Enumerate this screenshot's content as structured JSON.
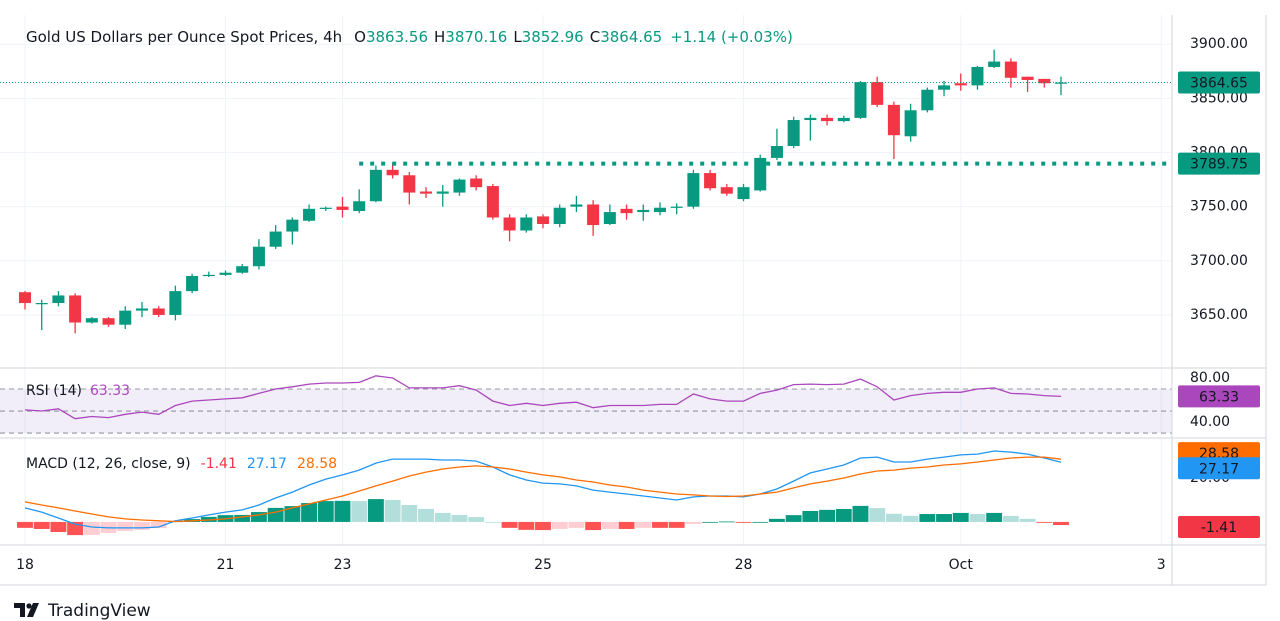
{
  "chart_data": [
    {
      "type": "candlestick",
      "title": "Gold US Dollars per Ounce Spot Prices, 4h",
      "ohlc_labels": [
        "O",
        "H",
        "L",
        "C"
      ],
      "change": "+1.14 (+0.03%)",
      "categories": [
        "18",
        null,
        null,
        null,
        null,
        null,
        null,
        null,
        null,
        null,
        null,
        null,
        "21",
        null,
        null,
        null,
        null,
        null,
        null,
        "23",
        null,
        null,
        null,
        null,
        null,
        null,
        null,
        null,
        null,
        null,
        null,
        "25",
        null,
        null,
        null,
        null,
        null,
        null,
        null,
        null,
        null,
        null,
        null,
        "28",
        null,
        null,
        null,
        null,
        null,
        null,
        null,
        null,
        null,
        null,
        null,
        null,
        "Oct",
        null,
        null,
        null,
        null,
        null,
        null,
        null,
        null,
        null,
        null,
        null,
        "3"
      ],
      "open": [
        3671,
        3660,
        3661,
        3668,
        3643,
        3647,
        3641,
        3654,
        3656,
        3650,
        3672,
        3686,
        3687,
        3689,
        3695,
        3713,
        3727,
        3737,
        3748,
        3750,
        3746,
        3755,
        3784,
        3779,
        3764,
        3762,
        3763,
        3776,
        3769,
        3740,
        3728,
        3741,
        3734,
        3750,
        3752,
        3734,
        3748,
        3745,
        3745,
        3749,
        3750,
        3781,
        3768,
        3757,
        3765,
        3795,
        3806,
        3830,
        3832,
        3829,
        3832,
        3865,
        3844,
        3815,
        3839,
        3858,
        3864,
        3862,
        3879,
        3884,
        3870,
        3868,
        3863.56,
        null,
        null,
        null,
        null,
        null,
        null
      ],
      "high": [
        3672,
        3664,
        3672,
        3670,
        3648,
        3648,
        3658,
        3662,
        3658,
        3677,
        3688,
        3690,
        3691,
        3697,
        3720,
        3733,
        3740,
        3752,
        3750,
        3759,
        3766,
        3788,
        3790,
        3782,
        3768,
        3770,
        3776,
        3779,
        3771,
        3743,
        3743,
        3743,
        3752,
        3760,
        3756,
        3752,
        3752,
        3752,
        3754,
        3753,
        3784,
        3784,
        3771,
        3771,
        3798,
        3822,
        3833,
        3835,
        3835,
        3834,
        3866,
        3870,
        3847,
        3845,
        3860,
        3866,
        3873,
        3880,
        3895,
        3887,
        3870,
        3868,
        3870.16,
        null,
        null,
        null,
        null,
        null,
        null
      ],
      "low": [
        3655,
        3636,
        3658,
        3633,
        3642,
        3639,
        3637,
        3648,
        3648,
        3645,
        3670,
        3685,
        3686,
        3688,
        3692,
        3711,
        3715,
        3736,
        3746,
        3740,
        3744,
        3754,
        3776,
        3752,
        3758,
        3750,
        3760,
        3765,
        3738,
        3718,
        3726,
        3730,
        3731,
        3745,
        3723,
        3733,
        3738,
        3737,
        3742,
        3743,
        3748,
        3765,
        3760,
        3755,
        3764,
        3793,
        3804,
        3811,
        3825,
        3828,
        3831,
        3842,
        3794,
        3810,
        3837,
        3852,
        3857,
        3858,
        3878,
        3860,
        3856,
        3860,
        3852.96,
        null,
        null,
        null,
        null,
        null,
        null
      ],
      "close": [
        3661,
        3661,
        3668,
        3643,
        3647,
        3641,
        3654,
        3656,
        3650,
        3672,
        3686,
        3687,
        3689,
        3695,
        3713,
        3727,
        3738,
        3748,
        3749,
        3747,
        3755,
        3784,
        3779,
        3763,
        3762,
        3764,
        3775,
        3768,
        3740,
        3728,
        3740,
        3734,
        3749,
        3752,
        3733,
        3745,
        3744,
        3747,
        3749,
        3750,
        3781,
        3767,
        3762,
        3768,
        3795,
        3806,
        3830,
        3832,
        3829,
        3832,
        3865,
        3844,
        3816,
        3839,
        3858,
        3862,
        3862,
        3879,
        3884,
        3869,
        3867,
        3864,
        3864.65,
        null,
        null,
        null,
        null,
        null,
        null
      ],
      "up_color": "#089981",
      "down_color": "#f23645",
      "level": 3789.75,
      "ylim": [
        3601,
        3927
      ],
      "yticks": [
        {
          "value": 3650,
          "label": "3650.00"
        },
        {
          "value": 3700,
          "label": "3700.00"
        },
        {
          "value": 3750,
          "label": "3750.00"
        },
        {
          "value": 3800,
          "label": "3800.00"
        },
        {
          "value": 3850,
          "label": "3850.00"
        },
        {
          "value": 3900,
          "label": "3900.00"
        }
      ],
      "grid": true
    },
    {
      "type": "line",
      "title": "RSI (14)",
      "color": "#ab47bc",
      "values": [
        51,
        50,
        52,
        43,
        45,
        44,
        47,
        49,
        47,
        55,
        59,
        60,
        61,
        62,
        66,
        70,
        72,
        74.5,
        75.5,
        75.5,
        76,
        82,
        80,
        71,
        71,
        71,
        73,
        69,
        59,
        55,
        57,
        55,
        57,
        58,
        53,
        55,
        55,
        55,
        56,
        56,
        65.5,
        61,
        59,
        59,
        66,
        69,
        74,
        74.5,
        74,
        74.5,
        79,
        72,
        60,
        64,
        66,
        67,
        67,
        70,
        71,
        66,
        65.5,
        64,
        63.33,
        null,
        null,
        null,
        null,
        null,
        null
      ],
      "band": [
        30,
        70
      ],
      "midline": 50,
      "ylim": [
        25.5,
        87.3
      ],
      "yticks": [
        {
          "value": 80,
          "label": "80.00"
        },
        {
          "value": 40,
          "label": "40.00"
        }
      ]
    },
    {
      "type": "macd",
      "title": "MACD (12, 26, close, 9)",
      "histogram": [
        -2.7,
        -3.2,
        -4.6,
        -6,
        -5.9,
        -5,
        -4.1,
        -3.6,
        -2.8,
        0.3,
        1.3,
        2.3,
        3.1,
        3.2,
        4.5,
        6.4,
        7.2,
        8.6,
        9.5,
        9.6,
        9.5,
        10.4,
        10,
        7.7,
        5.9,
        4.1,
        3.2,
        2.2,
        0,
        -2.7,
        -3.6,
        -3.7,
        -3.2,
        -2.7,
        -3.7,
        -3.2,
        -3.2,
        -2.7,
        -2.7,
        -2.7,
        -0.9,
        0,
        0.2,
        -0.4,
        0,
        1.4,
        3.1,
        5,
        5.5,
        5.9,
        7.3,
        6.3,
        3.7,
        2.8,
        3.6,
        3.6,
        4.1,
        3.6,
        4.1,
        2.7,
        1.4,
        -0.4,
        -1.41,
        null,
        null,
        null,
        null,
        null,
        null
      ],
      "macd": [
        6.4,
        4.5,
        1.8,
        -1,
        -2.3,
        -2.7,
        -2.7,
        -2.7,
        -2.3,
        0.5,
        1.8,
        3.2,
        4.5,
        5.5,
        7.7,
        10.9,
        13.6,
        16.8,
        19.5,
        21.4,
        23.6,
        26.8,
        28.6,
        28.6,
        28.6,
        28.2,
        28.2,
        27.7,
        25,
        21.4,
        19.1,
        17.7,
        17.3,
        16.4,
        14.5,
        13.6,
        12.7,
        11.8,
        10.9,
        10,
        11.4,
        11.8,
        11.8,
        11.4,
        12.7,
        15,
        18.6,
        22.3,
        24.1,
        25.9,
        29.1,
        29.5,
        27.3,
        27.3,
        28.6,
        29.5,
        30.5,
        30.9,
        32.3,
        31.8,
        30.9,
        29.1,
        27.17,
        null,
        null,
        null,
        null,
        null,
        null
      ],
      "signal": [
        9.1,
        7.7,
        6.4,
        5,
        3.6,
        2.3,
        1.4,
        0.9,
        0.5,
        0.2,
        0.5,
        0.9,
        1.4,
        2.3,
        3.2,
        4.5,
        6.4,
        8.2,
        10,
        11.8,
        14.1,
        16.4,
        18.6,
        20.9,
        22.7,
        24.1,
        25,
        25.5,
        25,
        24.1,
        22.7,
        21.4,
        20.5,
        19.1,
        18.2,
        16.8,
        15.9,
        14.5,
        13.6,
        12.7,
        12.3,
        11.8,
        11.6,
        11.8,
        12.7,
        13.6,
        15.5,
        17.3,
        18.6,
        20,
        21.8,
        23.2,
        23.6,
        24.5,
        25,
        25.9,
        26.4,
        27.3,
        28.2,
        29.1,
        29.5,
        29.5,
        28.58,
        null,
        null,
        null,
        null,
        null,
        null
      ],
      "macd_color": "#2196f3",
      "signal_color": "#ff6d00",
      "ylim": [
        -10.5,
        37.3
      ],
      "yticks": [
        {
          "value": 20,
          "label": "20.00"
        }
      ]
    }
  ],
  "brand": "TradingView"
}
